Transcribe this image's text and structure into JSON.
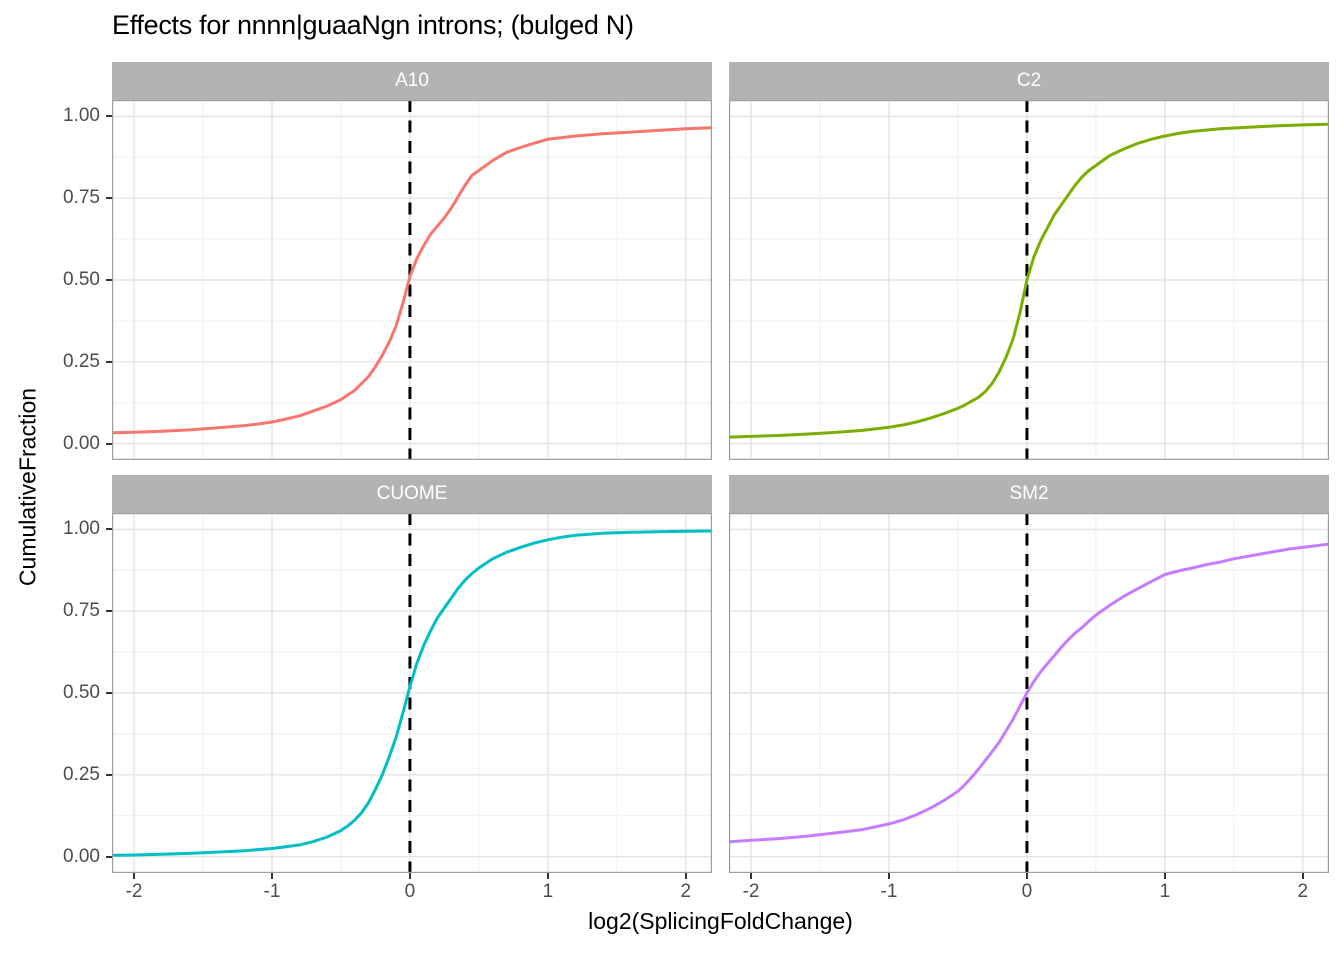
{
  "chart_data": {
    "type": "line",
    "subtype": "cumulative-ecdf-faceted",
    "title": "Effects for nnnn|guaaNgn introns; (bulged N)",
    "xlabel": "log2(SplicingFoldChange)",
    "ylabel": "CumulativeFraction",
    "xlim": [
      -2.16,
      2.19
    ],
    "ylim": [
      -0.05,
      1.05
    ],
    "x_ticks": [
      -2,
      -1,
      0,
      1,
      2
    ],
    "x_tick_labels": [
      "-2",
      "-1",
      "0",
      "1",
      "2"
    ],
    "y_ticks": [
      0,
      0.25,
      0.5,
      0.75,
      1
    ],
    "y_tick_labels": [
      "0.00",
      "0.25",
      "0.50",
      "0.75",
      "1.00"
    ],
    "x_minor_ticks": [
      -1.5,
      -0.5,
      0.5,
      1.5
    ],
    "y_minor_ticks": [
      0.125,
      0.375,
      0.625,
      0.875
    ],
    "grid": "major+minor",
    "legend": "none",
    "reference_line": {
      "x": 0,
      "style": "dashed",
      "color": "#000000"
    },
    "facets": [
      {
        "label": "A10",
        "color": "#F8766D",
        "points": [
          [
            -2.16,
            0.033
          ],
          [
            -2.0,
            0.035
          ],
          [
            -1.8,
            0.038
          ],
          [
            -1.6,
            0.042
          ],
          [
            -1.4,
            0.048
          ],
          [
            -1.2,
            0.055
          ],
          [
            -1.1,
            0.06
          ],
          [
            -1.0,
            0.066
          ],
          [
            -0.9,
            0.075
          ],
          [
            -0.8,
            0.085
          ],
          [
            -0.7,
            0.1
          ],
          [
            -0.6,
            0.115
          ],
          [
            -0.5,
            0.135
          ],
          [
            -0.4,
            0.163
          ],
          [
            -0.3,
            0.205
          ],
          [
            -0.25,
            0.235
          ],
          [
            -0.2,
            0.27
          ],
          [
            -0.15,
            0.31
          ],
          [
            -0.1,
            0.36
          ],
          [
            -0.05,
            0.43
          ],
          [
            0,
            0.51
          ],
          [
            0.05,
            0.565
          ],
          [
            0.1,
            0.605
          ],
          [
            0.15,
            0.64
          ],
          [
            0.2,
            0.665
          ],
          [
            0.25,
            0.69
          ],
          [
            0.3,
            0.72
          ],
          [
            0.35,
            0.755
          ],
          [
            0.4,
            0.79
          ],
          [
            0.45,
            0.82
          ],
          [
            0.5,
            0.835
          ],
          [
            0.55,
            0.85
          ],
          [
            0.6,
            0.865
          ],
          [
            0.7,
            0.89
          ],
          [
            0.8,
            0.905
          ],
          [
            0.9,
            0.918
          ],
          [
            1.0,
            0.93
          ],
          [
            1.1,
            0.935
          ],
          [
            1.2,
            0.94
          ],
          [
            1.4,
            0.947
          ],
          [
            1.6,
            0.952
          ],
          [
            1.8,
            0.957
          ],
          [
            2.0,
            0.962
          ],
          [
            2.19,
            0.965
          ]
        ]
      },
      {
        "label": "C2",
        "color": "#7CAE00",
        "points": [
          [
            -2.16,
            0.02
          ],
          [
            -2.0,
            0.022
          ],
          [
            -1.8,
            0.025
          ],
          [
            -1.6,
            0.029
          ],
          [
            -1.4,
            0.034
          ],
          [
            -1.2,
            0.04
          ],
          [
            -1.0,
            0.05
          ],
          [
            -0.9,
            0.057
          ],
          [
            -0.8,
            0.066
          ],
          [
            -0.7,
            0.078
          ],
          [
            -0.6,
            0.092
          ],
          [
            -0.5,
            0.108
          ],
          [
            -0.45,
            0.118
          ],
          [
            -0.4,
            0.13
          ],
          [
            -0.35,
            0.142
          ],
          [
            -0.3,
            0.16
          ],
          [
            -0.25,
            0.185
          ],
          [
            -0.2,
            0.22
          ],
          [
            -0.15,
            0.265
          ],
          [
            -0.1,
            0.32
          ],
          [
            -0.05,
            0.4
          ],
          [
            0,
            0.5
          ],
          [
            0.05,
            0.57
          ],
          [
            0.1,
            0.62
          ],
          [
            0.15,
            0.66
          ],
          [
            0.2,
            0.7
          ],
          [
            0.25,
            0.73
          ],
          [
            0.3,
            0.76
          ],
          [
            0.35,
            0.79
          ],
          [
            0.4,
            0.815
          ],
          [
            0.45,
            0.835
          ],
          [
            0.5,
            0.85
          ],
          [
            0.6,
            0.88
          ],
          [
            0.7,
            0.9
          ],
          [
            0.8,
            0.917
          ],
          [
            0.9,
            0.93
          ],
          [
            1.0,
            0.94
          ],
          [
            1.1,
            0.948
          ],
          [
            1.2,
            0.954
          ],
          [
            1.4,
            0.962
          ],
          [
            1.6,
            0.967
          ],
          [
            1.8,
            0.971
          ],
          [
            2.0,
            0.974
          ],
          [
            2.19,
            0.976
          ]
        ]
      },
      {
        "label": "CUOME",
        "color": "#00BFC4",
        "points": [
          [
            -2.16,
            0.004
          ],
          [
            -2.0,
            0.005
          ],
          [
            -1.8,
            0.007
          ],
          [
            -1.6,
            0.01
          ],
          [
            -1.4,
            0.014
          ],
          [
            -1.2,
            0.018
          ],
          [
            -1.0,
            0.025
          ],
          [
            -0.9,
            0.03
          ],
          [
            -0.8,
            0.036
          ],
          [
            -0.7,
            0.046
          ],
          [
            -0.6,
            0.06
          ],
          [
            -0.5,
            0.08
          ],
          [
            -0.45,
            0.094
          ],
          [
            -0.4,
            0.112
          ],
          [
            -0.35,
            0.135
          ],
          [
            -0.3,
            0.165
          ],
          [
            -0.25,
            0.205
          ],
          [
            -0.2,
            0.25
          ],
          [
            -0.15,
            0.305
          ],
          [
            -0.1,
            0.365
          ],
          [
            -0.05,
            0.44
          ],
          [
            0,
            0.52
          ],
          [
            0.05,
            0.59
          ],
          [
            0.1,
            0.645
          ],
          [
            0.15,
            0.69
          ],
          [
            0.2,
            0.73
          ],
          [
            0.25,
            0.76
          ],
          [
            0.3,
            0.79
          ],
          [
            0.35,
            0.82
          ],
          [
            0.4,
            0.845
          ],
          [
            0.45,
            0.865
          ],
          [
            0.5,
            0.882
          ],
          [
            0.6,
            0.91
          ],
          [
            0.7,
            0.93
          ],
          [
            0.8,
            0.945
          ],
          [
            0.9,
            0.958
          ],
          [
            1.0,
            0.968
          ],
          [
            1.1,
            0.976
          ],
          [
            1.2,
            0.982
          ],
          [
            1.4,
            0.988
          ],
          [
            1.6,
            0.991
          ],
          [
            1.8,
            0.993
          ],
          [
            2.0,
            0.994
          ],
          [
            2.19,
            0.995
          ]
        ]
      },
      {
        "label": "SM2",
        "color": "#C77CFF",
        "points": [
          [
            -2.16,
            0.045
          ],
          [
            -2.0,
            0.05
          ],
          [
            -1.8,
            0.055
          ],
          [
            -1.6,
            0.062
          ],
          [
            -1.4,
            0.072
          ],
          [
            -1.2,
            0.082
          ],
          [
            -1.0,
            0.1
          ],
          [
            -0.9,
            0.112
          ],
          [
            -0.8,
            0.128
          ],
          [
            -0.7,
            0.148
          ],
          [
            -0.6,
            0.172
          ],
          [
            -0.5,
            0.2
          ],
          [
            -0.45,
            0.22
          ],
          [
            -0.4,
            0.243
          ],
          [
            -0.35,
            0.268
          ],
          [
            -0.3,
            0.295
          ],
          [
            -0.25,
            0.322
          ],
          [
            -0.2,
            0.35
          ],
          [
            -0.15,
            0.385
          ],
          [
            -0.1,
            0.42
          ],
          [
            -0.05,
            0.46
          ],
          [
            0,
            0.5
          ],
          [
            0.05,
            0.535
          ],
          [
            0.1,
            0.565
          ],
          [
            0.15,
            0.59
          ],
          [
            0.2,
            0.615
          ],
          [
            0.25,
            0.64
          ],
          [
            0.3,
            0.663
          ],
          [
            0.35,
            0.683
          ],
          [
            0.4,
            0.7
          ],
          [
            0.45,
            0.72
          ],
          [
            0.5,
            0.738
          ],
          [
            0.6,
            0.768
          ],
          [
            0.7,
            0.795
          ],
          [
            0.8,
            0.818
          ],
          [
            0.9,
            0.84
          ],
          [
            1.0,
            0.862
          ],
          [
            1.1,
            0.873
          ],
          [
            1.2,
            0.882
          ],
          [
            1.3,
            0.892
          ],
          [
            1.4,
            0.9
          ],
          [
            1.5,
            0.91
          ],
          [
            1.7,
            0.925
          ],
          [
            1.9,
            0.94
          ],
          [
            2.0,
            0.945
          ],
          [
            2.19,
            0.955
          ]
        ]
      }
    ],
    "colors": {
      "panel_bg": "#ffffff",
      "strip_bg": "#b3b3b3",
      "strip_text": "#ffffff",
      "grid_major": "#e4e4e4",
      "grid_minor": "#f1f1f1",
      "panel_border": "#9e9e9e",
      "tick": "#333333",
      "tick_label": "#4d4d4d"
    }
  }
}
